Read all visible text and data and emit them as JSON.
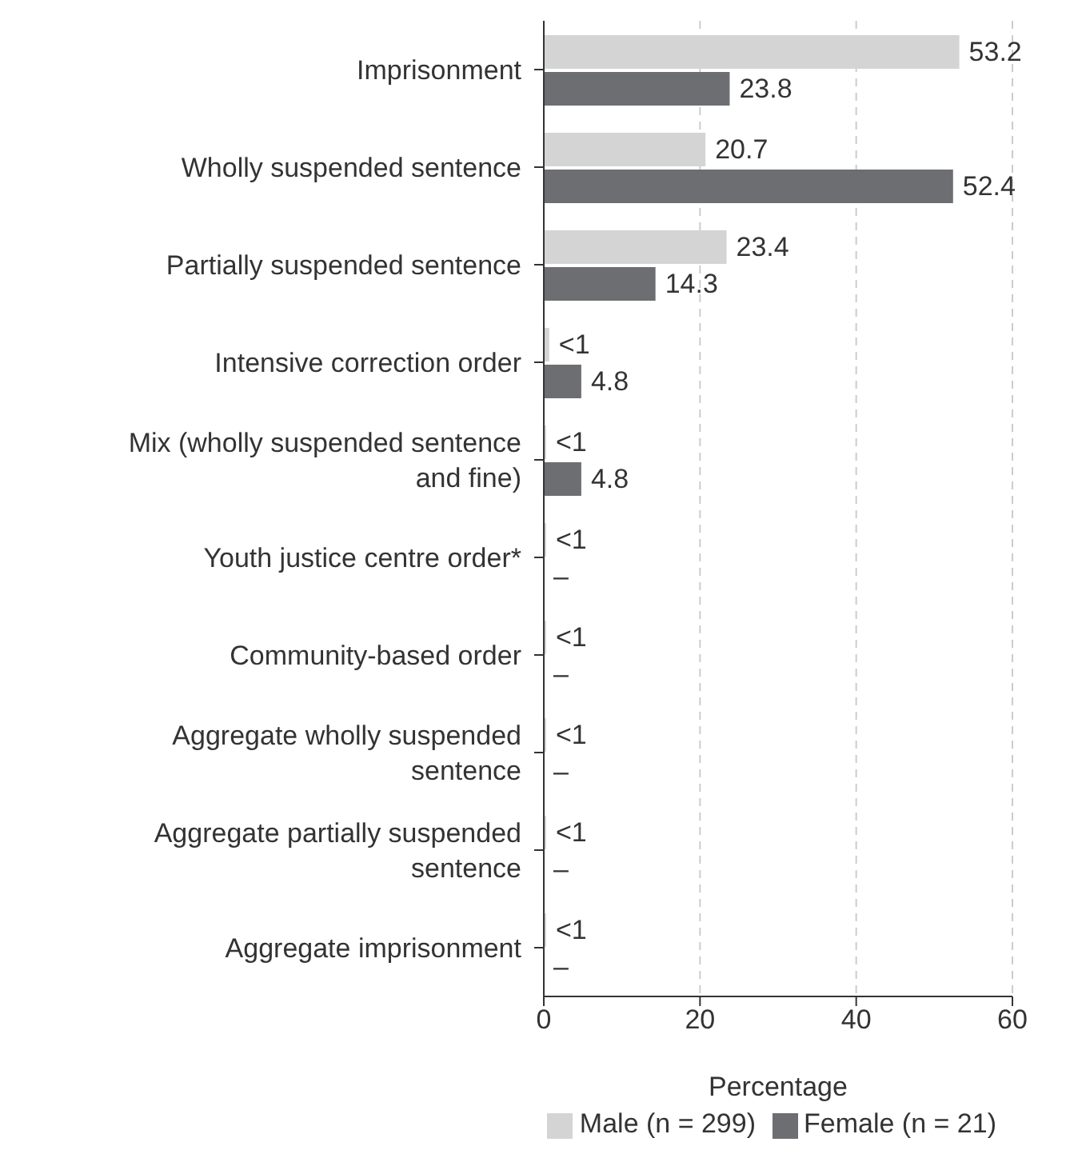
{
  "chart_data": {
    "type": "bar",
    "orientation": "horizontal",
    "categories": [
      "Imprisonment",
      "Wholly suspended sentence",
      "Partially suspended sentence",
      "Intensive correction order",
      "Mix (wholly suspended sentence and fine)",
      "Youth justice centre order*",
      "Community-based order",
      "Aggregate wholly suspended sentence",
      "Aggregate partially suspended sentence",
      "Aggregate imprisonment"
    ],
    "series": [
      {
        "name": "Male (n = 299)",
        "color": "#d4d4d4",
        "values": [
          53.2,
          20.7,
          23.4,
          0.7,
          0.3,
          0.3,
          0.3,
          0.3,
          0.3,
          0.3
        ],
        "value_labels": [
          "53.2",
          "20.7",
          "23.4",
          "<1",
          "<1",
          "<1",
          "<1",
          "<1",
          "<1",
          "<1"
        ]
      },
      {
        "name": "Female (n = 21)",
        "color": "#6d6e71",
        "values": [
          23.8,
          52.4,
          14.3,
          4.8,
          4.8,
          0,
          0,
          0,
          0,
          0
        ],
        "value_labels": [
          "23.8",
          "52.4",
          "14.3",
          "4.8",
          "4.8",
          "–",
          "–",
          "–",
          "–",
          "–"
        ]
      }
    ],
    "xlabel": "Percentage",
    "xlim": [
      0,
      60
    ],
    "xticks": [
      0,
      20,
      40,
      60
    ],
    "grid": "x",
    "legend": "bottom right"
  }
}
